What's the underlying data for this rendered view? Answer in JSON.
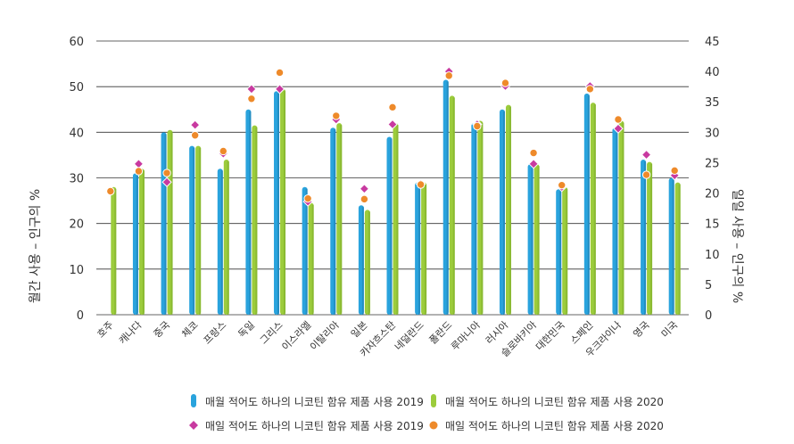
{
  "chart_data": {
    "type": "bar",
    "categories": [
      "호주",
      "캐나다",
      "중국",
      "체코",
      "프랑스",
      "독일",
      "그리스",
      "이스라엘",
      "이탈리아",
      "일본",
      "카자흐스탄",
      "네덜란드",
      "폴란드",
      "루마니아",
      "러시아",
      "슬로바키아",
      "대한민국",
      "스페인",
      "우크라이나",
      "영국",
      "미국"
    ],
    "left_axis": {
      "label": "월간 사용 – 인구의 %",
      "ylim": [
        0,
        60
      ],
      "ticks": [
        0,
        10,
        20,
        30,
        40,
        50,
        60
      ]
    },
    "right_axis": {
      "label": "일일 사용 – 인구의 %",
      "ylim": [
        0,
        45
      ],
      "ticks": [
        0,
        5,
        10,
        15,
        20,
        25,
        30,
        35,
        40,
        45
      ]
    },
    "grid": true,
    "legend_position": "bottom",
    "colors": {
      "bar2019": "#29a3dd",
      "bar2020": "#9ccc3c",
      "marker2019": "#c83aa0",
      "marker2020": "#ee8a2a",
      "grid": "#333333"
    },
    "series": [
      {
        "name": "매월 적어도 하나의 니코틴 함유 제품 사용 2019",
        "kind": "bar",
        "axis": "left",
        "values": [
          null,
          31,
          40,
          37,
          32,
          45,
          49,
          28,
          41,
          24,
          39,
          29,
          51.5,
          42,
          45,
          33,
          27.5,
          48.5,
          41,
          34,
          30
        ]
      },
      {
        "name": "매월 적어도 하나의 니코틴 함유 제품 사용 2020",
        "kind": "bar",
        "axis": "left",
        "values": [
          28,
          32,
          40.5,
          37,
          34,
          41.5,
          49.5,
          24.5,
          42,
          23,
          42,
          29,
          48,
          42.5,
          46,
          33,
          28,
          46.5,
          42.5,
          33.5,
          29
        ]
      },
      {
        "name": "매일 적어도 하나의 니코틴 함유 제품 사용 2019",
        "kind": "marker",
        "shape": "diamond",
        "axis": "right",
        "values": [
          null,
          24.8,
          21.8,
          31.2,
          26.5,
          37.1,
          37.1,
          18.6,
          32.1,
          20.7,
          31.3,
          21.5,
          40.0,
          31.3,
          37.6,
          24.8,
          21.0,
          37.6,
          30.6,
          26.3,
          22.9
        ]
      },
      {
        "name": "매일 적어도 하나의 니코틴 함유 제품 사용 2020",
        "kind": "marker",
        "shape": "circle",
        "axis": "right",
        "values": [
          20.3,
          23.6,
          23.3,
          29.5,
          26.9,
          35.5,
          39.8,
          19.1,
          32.7,
          19.0,
          34.1,
          21.4,
          39.3,
          31.0,
          38.1,
          26.6,
          21.3,
          37.1,
          32.1,
          23.0,
          23.7
        ]
      }
    ]
  }
}
